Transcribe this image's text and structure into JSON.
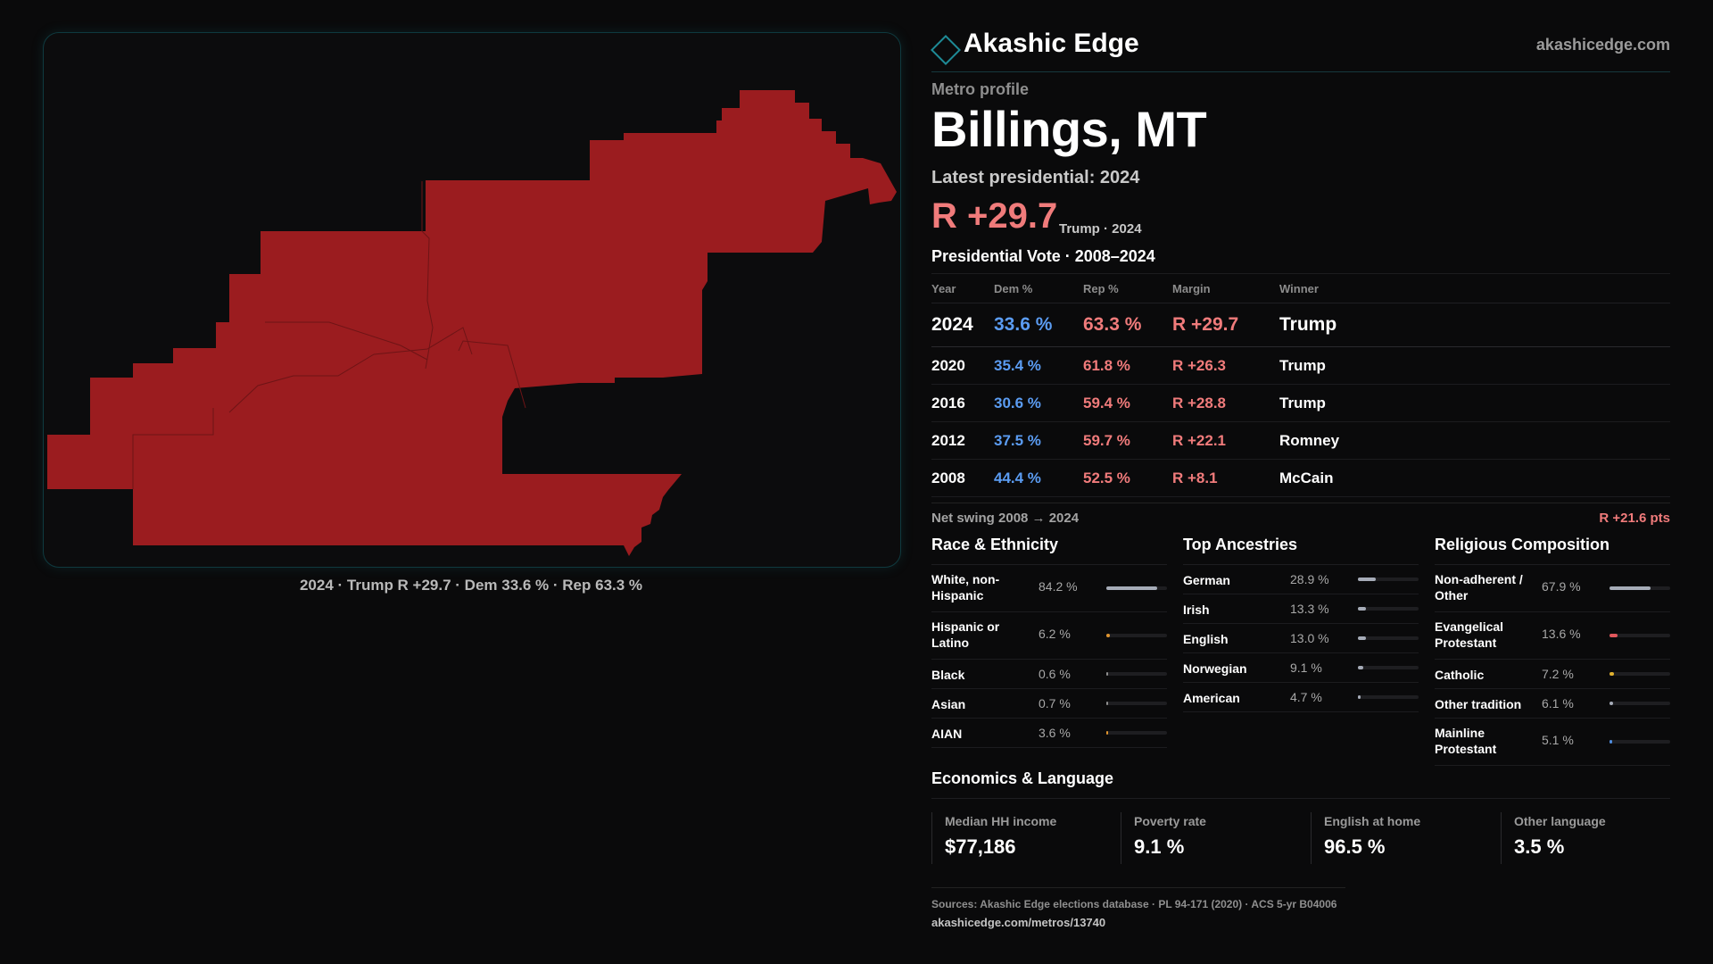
{
  "map": {
    "caption": "2024 · Trump R +29.7 · Dem 33.6 % · Rep 63.3 %",
    "fill_color": "#9b1c1f"
  },
  "brand": {
    "name": "Akashic Edge",
    "url": "akashicedge.com",
    "icon": "diamond-icon"
  },
  "profile": {
    "eyebrow": "Metro profile",
    "title": "Billings, MT",
    "latest_label": "Latest presidential: 2024",
    "margin": "R +29.7",
    "margin_sub": "Trump · 2024"
  },
  "vote_table": {
    "title": "Presidential Vote · 2008–2024",
    "headers": {
      "year": "Year",
      "dem": "Dem %",
      "rep": "Rep %",
      "margin": "Margin",
      "winner": "Winner"
    },
    "rows": [
      {
        "year": "2024",
        "dem": "33.6 %",
        "rep": "63.3 %",
        "margin": "R +29.7",
        "winner": "Trump"
      },
      {
        "year": "2020",
        "dem": "35.4 %",
        "rep": "61.8 %",
        "margin": "R +26.3",
        "winner": "Trump"
      },
      {
        "year": "2016",
        "dem": "30.6 %",
        "rep": "59.4 %",
        "margin": "R +28.8",
        "winner": "Trump"
      },
      {
        "year": "2012",
        "dem": "37.5 %",
        "rep": "59.7 %",
        "margin": "R +22.1",
        "winner": "Romney"
      },
      {
        "year": "2008",
        "dem": "44.4 %",
        "rep": "52.5 %",
        "margin": "R +8.1",
        "winner": "McCain"
      }
    ],
    "swing_label": "Net swing 2008 → 2024",
    "swing_value": "R +21.6 pts"
  },
  "race": {
    "title": "Race & Ethnicity",
    "rows": [
      {
        "label": "White, non-Hispanic",
        "value": "84.2 %",
        "pct": 84.2,
        "color": "#a6acb8"
      },
      {
        "label": "Hispanic or Latino",
        "value": "6.2 %",
        "pct": 6.2,
        "color": "#e0952f"
      },
      {
        "label": "Black",
        "value": "0.6 %",
        "pct": 0.6,
        "color": "#8f8f8f"
      },
      {
        "label": "Asian",
        "value": "0.7 %",
        "pct": 0.7,
        "color": "#8f8f8f"
      },
      {
        "label": "AIAN",
        "value": "3.6 %",
        "pct": 3.6,
        "color": "#e0952f"
      }
    ]
  },
  "ancestry": {
    "title": "Top Ancestries",
    "rows": [
      {
        "label": "German",
        "value": "28.9 %",
        "pct": 28.9,
        "color": "#a6acb8"
      },
      {
        "label": "Irish",
        "value": "13.3 %",
        "pct": 13.3,
        "color": "#a6acb8"
      },
      {
        "label": "English",
        "value": "13.0 %",
        "pct": 13.0,
        "color": "#a6acb8"
      },
      {
        "label": "Norwegian",
        "value": "9.1 %",
        "pct": 9.1,
        "color": "#a6acb8"
      },
      {
        "label": "American",
        "value": "4.7 %",
        "pct": 4.7,
        "color": "#a6acb8"
      }
    ]
  },
  "religion": {
    "title": "Religious Composition",
    "rows": [
      {
        "label": "Non-adherent / Other",
        "value": "67.9 %",
        "pct": 67.9,
        "color": "#a6acb8"
      },
      {
        "label": "Evangelical Protestant",
        "value": "13.6 %",
        "pct": 13.6,
        "color": "#e0575c"
      },
      {
        "label": "Catholic",
        "value": "7.2 %",
        "pct": 7.2,
        "color": "#e0b12f"
      },
      {
        "label": "Other tradition",
        "value": "6.1 %",
        "pct": 6.1,
        "color": "#a6acb8"
      },
      {
        "label": "Mainline Protestant",
        "value": "5.1 %",
        "pct": 5.1,
        "color": "#4f8de0"
      }
    ]
  },
  "economics": {
    "title": "Economics & Language",
    "items": [
      {
        "label": "Median HH income",
        "value": "$77,186"
      },
      {
        "label": "Poverty rate",
        "value": "9.1 %"
      },
      {
        "label": "English at home",
        "value": "96.5 %"
      },
      {
        "label": "Other language",
        "value": "3.5 %"
      }
    ]
  },
  "footer": {
    "sources": "Sources: Akashic Edge elections database · PL 94-171 (2020) · ACS 5-yr B04006",
    "url": "akashicedge.com/metros/13740"
  }
}
